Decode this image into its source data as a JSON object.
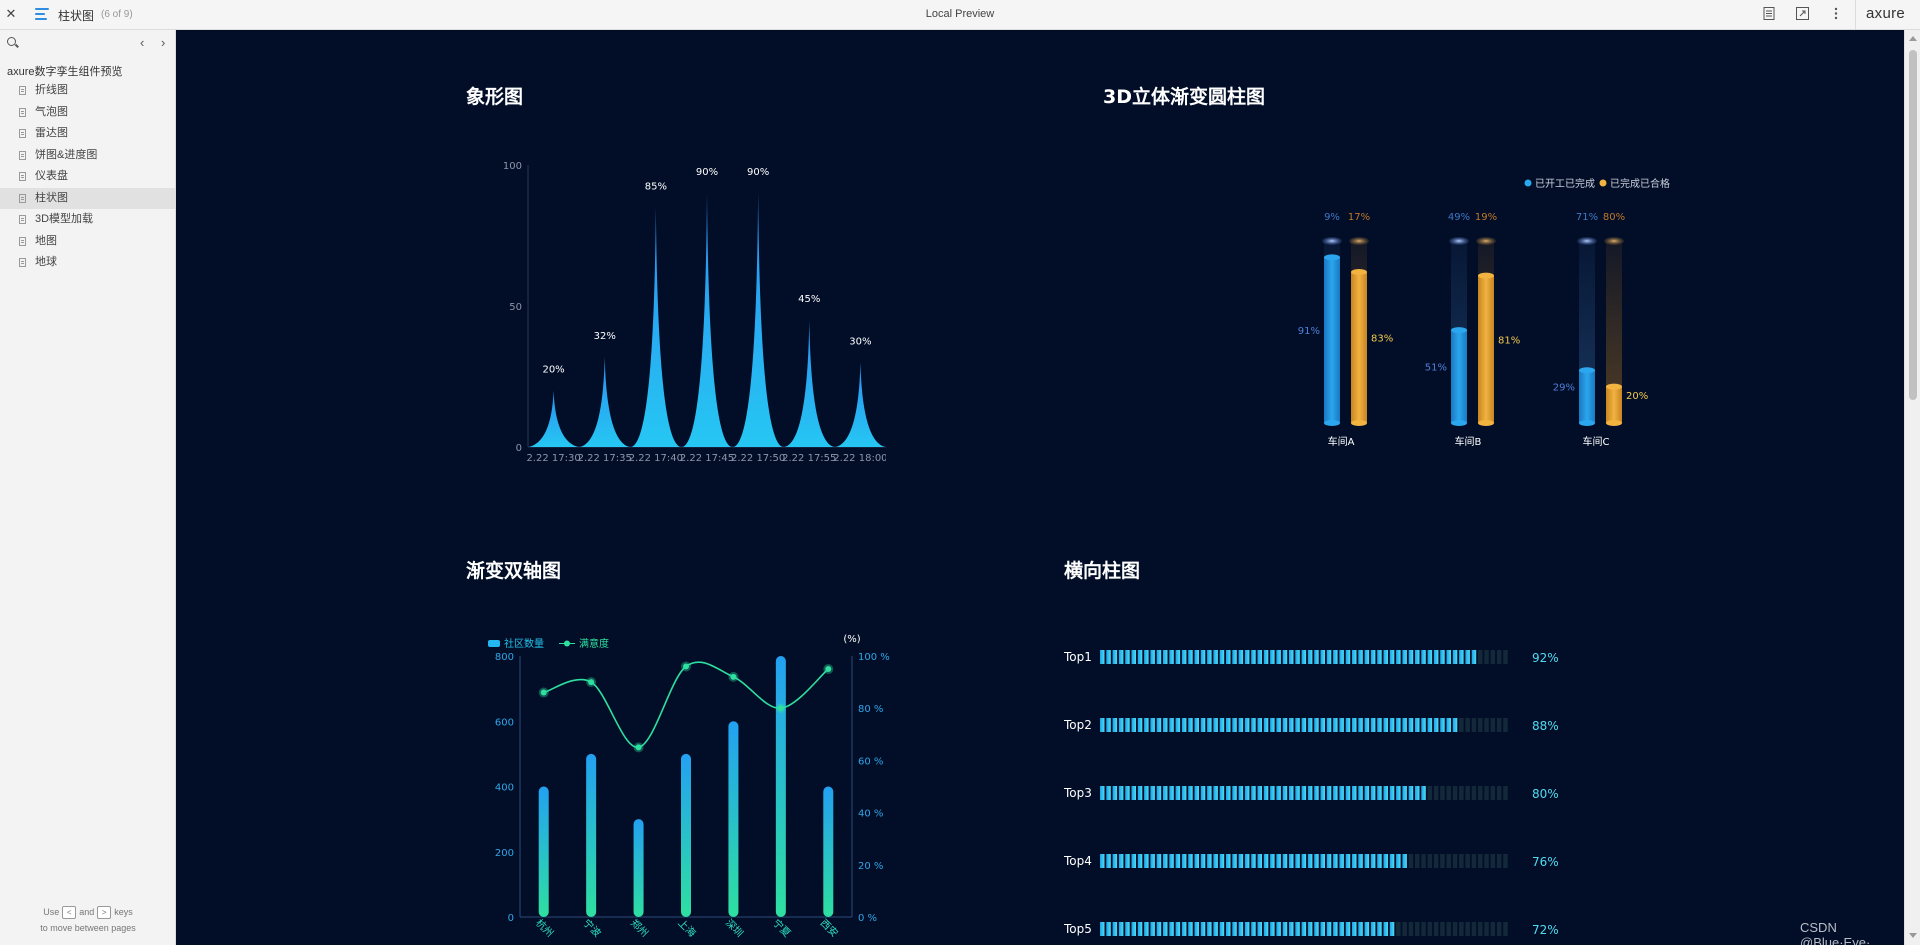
{
  "topbar": {
    "close_label": "✕",
    "page_name": "柱状图",
    "page_count": "(6 of 9)",
    "center_title": "Local Preview",
    "brand": "axure"
  },
  "sidebar": {
    "project_name": "axure数字孪生组件预览",
    "items": [
      {
        "label": "折线图"
      },
      {
        "label": "气泡图"
      },
      {
        "label": "雷达图"
      },
      {
        "label": "饼图&进度图"
      },
      {
        "label": "仪表盘"
      },
      {
        "label": "柱状图",
        "active": true
      },
      {
        "label": "3D模型加载"
      },
      {
        "label": "地图"
      },
      {
        "label": "地球"
      }
    ],
    "hint_use": "Use",
    "hint_and": "and",
    "hint_keys": "keys",
    "hint_line2": "to move between pages",
    "prev_key": "<",
    "next_key": ">"
  },
  "watermark": "CSDN @Blue·Eye·",
  "colors": {
    "canvas_bg": "#020e28",
    "blue": "#27a4f2",
    "cyan": "#33d6f2",
    "orange": "#f0ae3c",
    "green": "#2ee0a0"
  },
  "charts": [
    {
      "key": "pictorial",
      "chart_data": {
        "type": "bar",
        "title": "象形图",
        "categories": [
          "2.22 17:30",
          "2.22 17:35",
          "2.22 17:40",
          "2.22 17:45",
          "2.22 17:50",
          "2.22 17:55",
          "2.22 18:00"
        ],
        "values": [
          20,
          32,
          85,
          90,
          90,
          45,
          30
        ],
        "labels": [
          "20%",
          "32%",
          "85%",
          "90%",
          "90%",
          "45%",
          "30%"
        ],
        "yticks": [
          "0",
          "50",
          "100"
        ],
        "ylim": [
          0,
          100
        ]
      }
    },
    {
      "key": "cylinder3d",
      "chart_data": {
        "type": "bar",
        "title": "3D立体渐变圆柱图",
        "categories": [
          "车间A",
          "车间B",
          "车间C"
        ],
        "legend": [
          "已开工已完成",
          "已完成已合格"
        ],
        "series": [
          {
            "name": "已开工已完成",
            "values": [
              91,
              51,
              29
            ],
            "labels": [
              "91%",
              "51%",
              "29%"
            ],
            "top_labels": [
              "9%",
              "49%",
              "71%"
            ]
          },
          {
            "name": "已完成已合格",
            "values": [
              83,
              81,
              20
            ],
            "labels": [
              "83%",
              "81%",
              "20%"
            ],
            "top_labels": [
              "17%",
              "19%",
              "80%"
            ]
          }
        ],
        "ylim": [
          0,
          100
        ]
      }
    },
    {
      "key": "dualaxis",
      "chart_data": {
        "type": "bar",
        "title": "渐变双轴图",
        "categories": [
          "杭州",
          "宁波",
          "郑州",
          "上海",
          "深圳",
          "宁夏",
          "西安"
        ],
        "legend": [
          "社区数量",
          "满意度"
        ],
        "series": [
          {
            "name": "社区数量",
            "type": "bar",
            "values": [
              400,
              500,
              300,
              500,
              600,
              800,
              400
            ]
          },
          {
            "name": "满意度",
            "type": "line",
            "values": [
              86,
              90,
              65,
              96,
              92,
              80,
              95
            ]
          }
        ],
        "yticks_left": [
          "0",
          "200",
          "400",
          "600",
          "800"
        ],
        "yticks_right": [
          "0 %",
          "20 %",
          "40 %",
          "60 %",
          "80 %",
          "100 %"
        ],
        "right_unit": "(%)",
        "ylim_left": [
          0,
          800
        ],
        "ylim_right": [
          0,
          100
        ]
      }
    },
    {
      "key": "horizontal",
      "chart_data": {
        "type": "bar",
        "title": "横向柱图",
        "categories": [
          "Top1",
          "Top2",
          "Top3",
          "Top4",
          "Top5"
        ],
        "values": [
          92,
          88,
          80,
          76,
          72
        ],
        "labels": [
          "92%",
          "88%",
          "80%",
          "76%",
          "72%"
        ],
        "xlim": [
          0,
          100
        ]
      }
    }
  ]
}
